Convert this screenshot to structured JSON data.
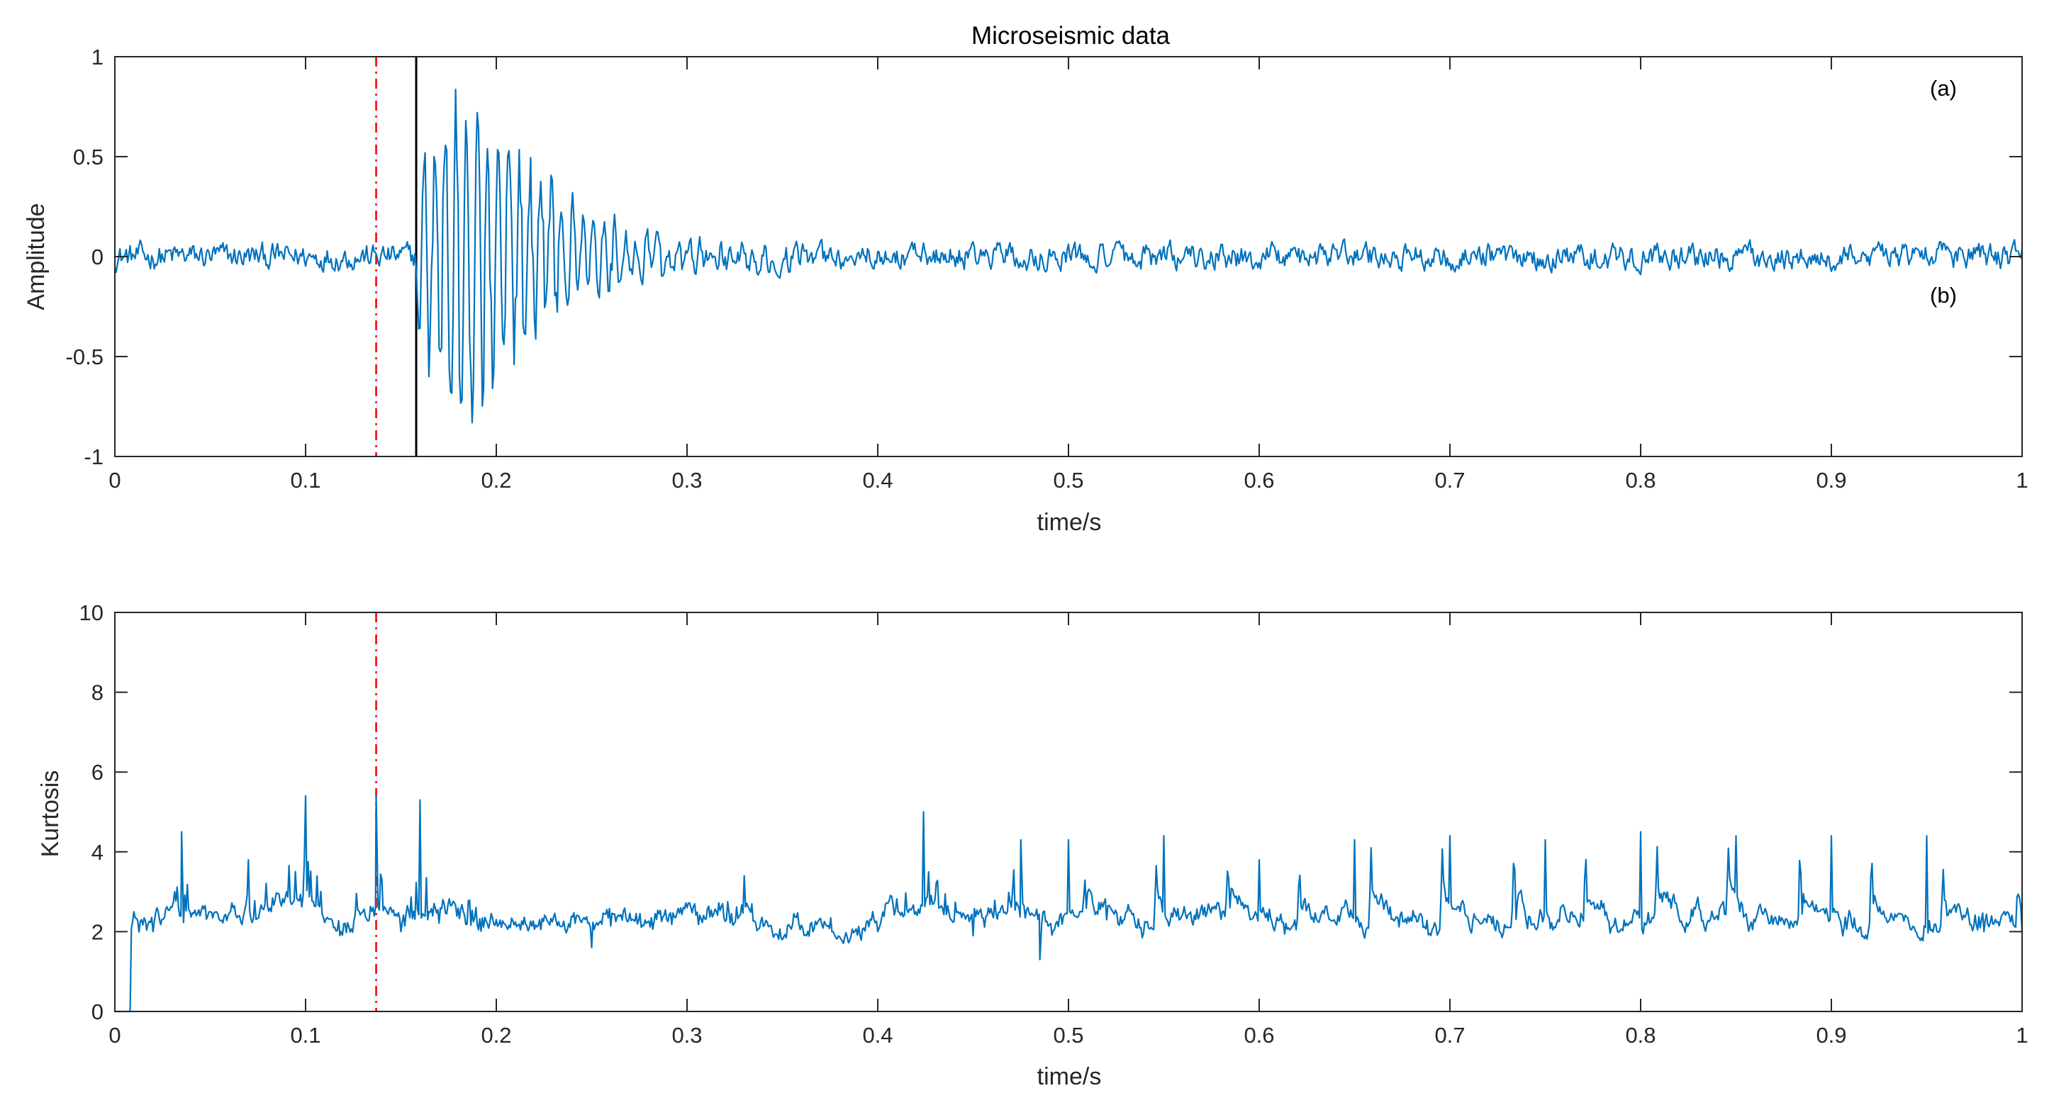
{
  "figure": {
    "title": "Microseismic data",
    "background": "#ffffff",
    "series_color": "#0072BD",
    "pick_line_color": "#FF0000",
    "arrival_line_color": "#000000"
  },
  "chart_data": [
    {
      "type": "line",
      "title": "Microseismic data",
      "xlabel": "time/s",
      "ylabel": "Amplitude",
      "xlim": [
        0,
        1
      ],
      "ylim": [
        -1,
        1
      ],
      "xticks": [
        0,
        0.1,
        0.2,
        0.3,
        0.4,
        0.5,
        0.6,
        0.7,
        0.8,
        0.9,
        1
      ],
      "xtick_labels": [
        "0",
        "0.1",
        "0.2",
        "0.3",
        "0.4",
        "0.5",
        "0.6",
        "0.7",
        "0.8",
        "0.9",
        "1"
      ],
      "yticks": [
        -1,
        -0.5,
        0,
        0.5,
        1
      ],
      "ytick_labels": [
        "-1",
        "-0.5",
        "0",
        "0.5",
        "1"
      ],
      "grid": false,
      "annotations": [
        "(a)",
        "(b)"
      ],
      "vertical_lines": [
        {
          "x": 0.137,
          "style": "dash-dot",
          "color": "#FF0000"
        },
        {
          "x": 0.158,
          "style": "solid",
          "color": "#000000"
        }
      ],
      "series": [
        {
          "color": "#0072BD",
          "sample_count": 1500,
          "signal": {
            "noise_amplitude": 0.07,
            "event_onset": 0.158,
            "event_peak_amplitude": 0.98,
            "event_peak_time": 0.185,
            "event_decay_end": 0.32,
            "frequency_hz": 180
          },
          "x": [
            0.0,
            0.05,
            0.1,
            0.137,
            0.158,
            0.17,
            0.18,
            0.183,
            0.19,
            0.2,
            0.22,
            0.25,
            0.3,
            0.4,
            0.425,
            0.5,
            0.6,
            0.7,
            0.8,
            0.9,
            1.0
          ],
          "y": [
            0.0,
            0.05,
            -0.05,
            0.02,
            -0.15,
            0.6,
            -0.8,
            0.98,
            -0.98,
            0.5,
            -0.45,
            0.3,
            -0.1,
            0.05,
            -0.27,
            0.08,
            -0.06,
            0.07,
            -0.05,
            0.06,
            -0.12
          ]
        }
      ]
    },
    {
      "type": "line",
      "title": "",
      "xlabel": "time/s",
      "ylabel": "Kurtosis",
      "xlim": [
        0,
        1
      ],
      "ylim": [
        0,
        10
      ],
      "xticks": [
        0,
        0.1,
        0.2,
        0.3,
        0.4,
        0.5,
        0.6,
        0.7,
        0.8,
        0.9,
        1
      ],
      "xtick_labels": [
        "0",
        "0.1",
        "0.2",
        "0.3",
        "0.4",
        "0.5",
        "0.6",
        "0.7",
        "0.8",
        "0.9",
        "1"
      ],
      "yticks": [
        0,
        2,
        4,
        6,
        8,
        10
      ],
      "ytick_labels": [
        "0",
        "2",
        "4",
        "6",
        "8",
        "10"
      ],
      "grid": false,
      "vertical_lines": [
        {
          "x": 0.137,
          "style": "dash-dot",
          "color": "#FF0000"
        }
      ],
      "series": [
        {
          "color": "#0072BD",
          "sample_count": 1500,
          "signal": {
            "baseline": 2.3,
            "initial_zero_until": 0.008
          },
          "x": [
            0.0,
            0.008,
            0.01,
            0.02,
            0.035,
            0.05,
            0.07,
            0.1,
            0.12,
            0.137,
            0.15,
            0.16,
            0.2,
            0.25,
            0.3,
            0.33,
            0.35,
            0.4,
            0.424,
            0.45,
            0.475,
            0.485,
            0.5,
            0.52,
            0.55,
            0.6,
            0.65,
            0.7,
            0.75,
            0.8,
            0.85,
            0.9,
            0.95,
            0.98,
            1.0
          ],
          "y": [
            0.0,
            0.0,
            2.5,
            2.0,
            4.5,
            2.5,
            3.8,
            5.4,
            2.2,
            5.4,
            2.0,
            5.3,
            2.3,
            1.6,
            2.6,
            3.4,
            1.8,
            2.0,
            5.0,
            1.9,
            4.3,
            1.3,
            4.3,
            2.3,
            4.4,
            3.8,
            4.3,
            4.4,
            4.3,
            4.5,
            4.4,
            4.4,
            4.4,
            2.0,
            2.0
          ]
        }
      ]
    }
  ]
}
